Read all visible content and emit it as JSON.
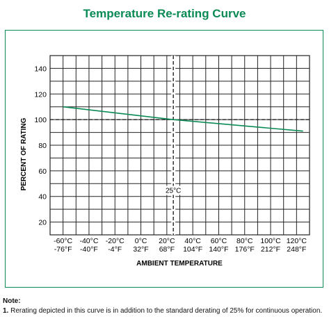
{
  "colors": {
    "accent": "#0a8a55",
    "grid": "#222222",
    "curve": "#0a8a55",
    "frame": "#0a8a55"
  },
  "chart_data": {
    "type": "line",
    "title": "Temperature Re-rating Curve",
    "xlabel": "AMBIENT TEMPERATURE",
    "ylabel": "PERCENT OF RATING",
    "xlim": [
      -70,
      130
    ],
    "ylim": [
      10,
      150
    ],
    "grid": true,
    "y_ticks": [
      "20",
      "40",
      "60",
      "80",
      "100",
      "120",
      "140"
    ],
    "x_ticks": [
      {
        "c": "-60°C",
        "f": "-76°F",
        "value": -60
      },
      {
        "c": "-40°C",
        "f": "-40°F",
        "value": -40
      },
      {
        "c": "-20°C",
        "f": "-4°F",
        "value": -20
      },
      {
        "c": "0°C",
        "f": "32°F",
        "value": 0
      },
      {
        "c": "20°C",
        "f": "68°F",
        "value": 20
      },
      {
        "c": "40°C",
        "f": "104°F",
        "value": 40
      },
      {
        "c": "60°C",
        "f": "140°F",
        "value": 60
      },
      {
        "c": "80°C",
        "f": "176°F",
        "value": 80
      },
      {
        "c": "100°C",
        "f": "212°F",
        "value": 100
      },
      {
        "c": "120°C",
        "f": "248°F",
        "value": 120
      }
    ],
    "series": [
      {
        "x": [
          -60,
          25,
          125
        ],
        "values": [
          110,
          100,
          91
        ]
      }
    ],
    "reference_lines": {
      "x": 25,
      "y": 100,
      "x_label": "25°C"
    }
  },
  "notes": {
    "heading": "Note:",
    "items": [
      {
        "number": "1.",
        "text": "Rerating depicted in this curve is in addition to the standard derating of 25% for continuous operation."
      }
    ]
  }
}
